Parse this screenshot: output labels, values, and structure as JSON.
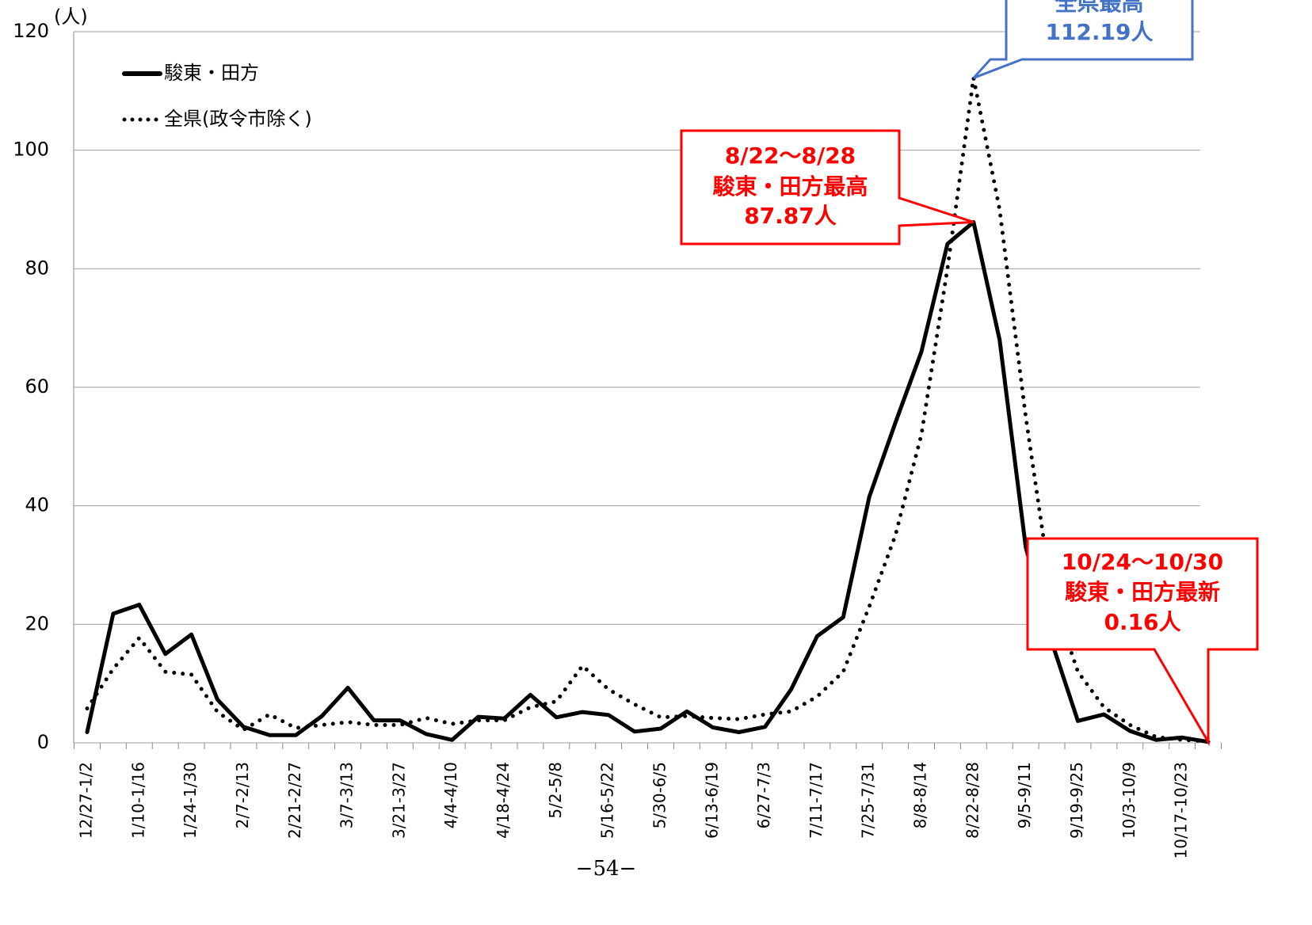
{
  "chart_data": {
    "type": "line",
    "y_unit": "(人)",
    "footer": "−54−",
    "categories": [
      "12/27-1/2",
      null,
      "1/10-1/16",
      null,
      "1/24-1/30",
      null,
      "2/7-2/13",
      null,
      "2/21-2/27",
      null,
      "3/7-3/13",
      null,
      "3/21-3/27",
      null,
      "4/4-4/10",
      null,
      "4/18-4/24",
      null,
      "5/2-5/8",
      null,
      "5/16-5/22",
      null,
      "5/30-6/5",
      null,
      "6/13-6/19",
      null,
      "6/27-7/3",
      null,
      "7/11-7/17",
      null,
      "7/25-7/31",
      null,
      "8/8-8/14",
      null,
      "8/22-8/28",
      null,
      "9/5-9/11",
      null,
      "9/19-9/25",
      null,
      "10/3-10/9",
      null,
      "10/17-10/23",
      null
    ],
    "series": [
      {
        "name": "駿東・田方",
        "color": "#000000",
        "dash": "solid",
        "values": [
          1.8,
          21.8,
          23.3,
          15,
          18.3,
          7.3,
          2.7,
          1.3,
          1.3,
          4.5,
          9.3,
          3.8,
          3.8,
          1.5,
          0.5,
          4.4,
          4.1,
          8.1,
          4.3,
          5.2,
          4.7,
          1.9,
          2.4,
          5.3,
          2.6,
          1.8,
          2.7,
          9,
          18,
          21.2,
          41.5,
          54,
          66,
          84.2,
          87.87,
          68,
          33,
          17,
          3.7,
          4.8,
          2,
          0.5,
          0.9,
          0.16
        ]
      },
      {
        "name": "全県(政令市除く)",
        "color": "#000000",
        "dash": "dotted",
        "values": [
          5.8,
          12.5,
          17.7,
          12,
          11.5,
          5.2,
          2.2,
          4.8,
          2.5,
          3,
          3.5,
          3,
          3,
          4.2,
          3.2,
          3.8,
          3.8,
          6,
          7,
          13,
          9,
          6.5,
          4.3,
          4.5,
          4.2,
          4,
          4.8,
          5.3,
          7.8,
          12,
          23,
          35,
          52,
          80,
          112.19,
          90,
          55,
          25,
          12,
          6,
          3,
          1,
          0.5,
          0.3
        ]
      }
    ],
    "ylim": [
      0,
      120
    ],
    "yticks": [
      0,
      20,
      40,
      60,
      80,
      100,
      120
    ],
    "grid": true,
    "annotations": [
      {
        "lines": [
          "全県最高",
          "112.19人"
        ],
        "color": "#4472c4",
        "series": 1,
        "index": 34
      },
      {
        "lines": [
          "8/22～8/28",
          "駿東・田方最高",
          "87.87人"
        ],
        "color": "#ff0000",
        "series": 0,
        "index": 34
      },
      {
        "lines": [
          "10/24～10/30",
          "駿東・田方最新",
          "0.16人"
        ],
        "color": "#ff0000",
        "series": 0,
        "index": 43
      }
    ]
  }
}
